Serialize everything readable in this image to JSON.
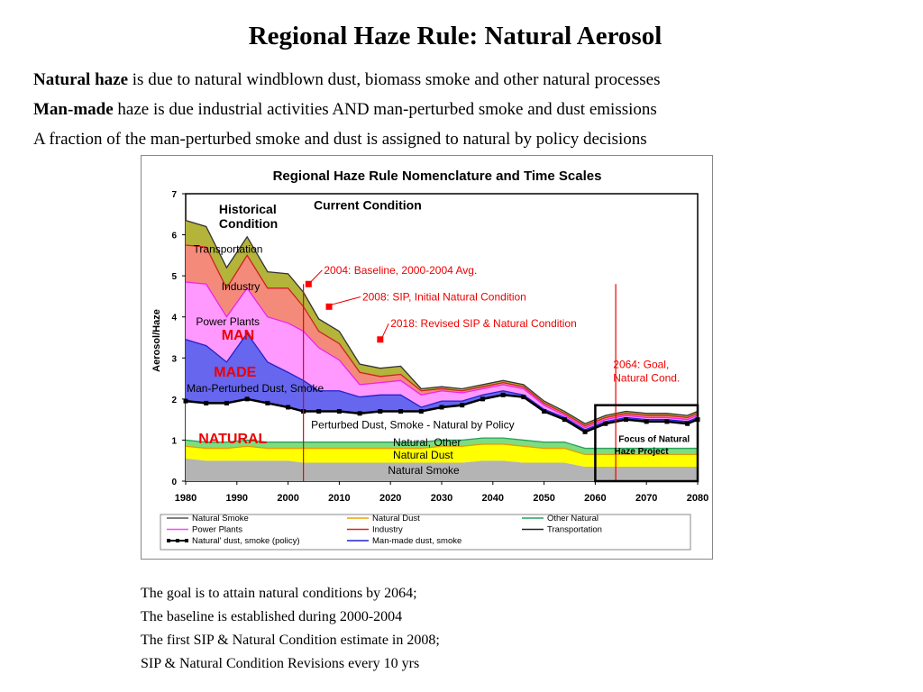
{
  "slide": {
    "title": "Regional Haze Rule: Natural Aerosol",
    "intro": [
      {
        "bold": "Natural haze",
        "rest": " is due to natural windblown dust, biomass smoke and other natural processes"
      },
      {
        "bold": "Man-made",
        "rest": " haze is due industrial activities  AND man-perturbed smoke and dust emissions"
      },
      {
        "bold": "",
        "rest": "A fraction of the man-perturbed smoke and dust is assigned to natural by policy decisions"
      }
    ],
    "notes": [
      "The goal is to attain natural conditions by 2064;",
      "The baseline is established during 2000-2004",
      "The first SIP & Natural Condition estimate in 2008;",
      "SIP & Natural Condition Revisions every 10 yrs"
    ]
  },
  "chart_data": {
    "type": "area",
    "title": "Regional Haze Rule Nomenclature and Time Scales",
    "ylabel": "Aerosol/Haze",
    "xlabel": "",
    "xlim": [
      1980,
      2080
    ],
    "ylim": [
      0,
      7
    ],
    "xticks": [
      1980,
      1990,
      2000,
      2010,
      2020,
      2030,
      2040,
      2050,
      2060,
      2070,
      2080
    ],
    "yticks": [
      0,
      1,
      2,
      3,
      4,
      5,
      6,
      7
    ],
    "x": [
      1980,
      1984,
      1988,
      1992,
      1996,
      2000,
      2003,
      2006,
      2010,
      2014,
      2018,
      2022,
      2026,
      2030,
      2034,
      2038,
      2042,
      2046,
      2050,
      2054,
      2058,
      2062,
      2066,
      2070,
      2074,
      2078,
      2080
    ],
    "series": [
      {
        "name": "Natural Smoke",
        "color": "#b4b4b4",
        "values": [
          0.55,
          0.5,
          0.5,
          0.5,
          0.5,
          0.5,
          0.45,
          0.45,
          0.45,
          0.45,
          0.45,
          0.45,
          0.45,
          0.45,
          0.45,
          0.5,
          0.5,
          0.45,
          0.45,
          0.45,
          0.35,
          0.35,
          0.35,
          0.35,
          0.35,
          0.35,
          0.35
        ]
      },
      {
        "name": "Natural Dust",
        "color": "#ffff00",
        "values": [
          0.3,
          0.3,
          0.3,
          0.35,
          0.3,
          0.3,
          0.35,
          0.35,
          0.35,
          0.35,
          0.35,
          0.35,
          0.35,
          0.4,
          0.4,
          0.4,
          0.4,
          0.4,
          0.35,
          0.35,
          0.3,
          0.3,
          0.3,
          0.3,
          0.3,
          0.3,
          0.3
        ]
      },
      {
        "name": "Other Natural",
        "color": "#7fdc7f",
        "values": [
          0.15,
          0.15,
          0.15,
          0.15,
          0.15,
          0.15,
          0.15,
          0.15,
          0.15,
          0.15,
          0.15,
          0.15,
          0.15,
          0.15,
          0.15,
          0.15,
          0.15,
          0.15,
          0.15,
          0.15,
          0.15,
          0.15,
          0.15,
          0.15,
          0.15,
          0.15,
          0.15
        ]
      },
      {
        "name": "Natural' dust, smoke (policy)",
        "color": "#ffffff",
        "values": [
          0.95,
          0.95,
          0.95,
          1.0,
          0.95,
          0.85,
          0.75,
          0.75,
          0.75,
          0.7,
          0.75,
          0.75,
          0.75,
          0.8,
          0.85,
          0.95,
          1.05,
          1.05,
          0.75,
          0.55,
          0.4,
          0.6,
          0.7,
          0.65,
          0.65,
          0.6,
          0.7
        ]
      },
      {
        "name": "Man-made dust, smoke",
        "color": "#6666ee",
        "values": [
          1.5,
          1.4,
          1.0,
          1.6,
          1.0,
          0.85,
          0.75,
          0.5,
          0.5,
          0.4,
          0.4,
          0.4,
          0.1,
          0.15,
          0.1,
          0.1,
          0.1,
          0.05,
          0.05,
          0.05,
          0.05,
          0.05,
          0.05,
          0.05,
          0.05,
          0.05,
          0.05
        ]
      },
      {
        "name": "Power Plants",
        "color": "#ff99ff",
        "values": [
          1.4,
          1.5,
          1.1,
          1.1,
          1.1,
          1.2,
          1.2,
          1.05,
          0.75,
          0.3,
          0.3,
          0.35,
          0.3,
          0.25,
          0.2,
          0.15,
          0.15,
          0.15,
          0.1,
          0.05,
          0.05,
          0.05,
          0.05,
          0.05,
          0.05,
          0.05,
          0.05
        ]
      },
      {
        "name": "Industry",
        "color": "#f48a7a",
        "values": [
          0.9,
          0.9,
          0.7,
          0.8,
          0.7,
          0.85,
          0.6,
          0.4,
          0.4,
          0.3,
          0.15,
          0.15,
          0.1,
          0.05,
          0.05,
          0.05,
          0.05,
          0.05,
          0.05,
          0.05,
          0.05,
          0.05,
          0.05,
          0.05,
          0.05,
          0.05,
          0.05
        ]
      },
      {
        "name": "Transportation",
        "color": "#b4b43a",
        "values": [
          0.6,
          0.5,
          0.5,
          0.45,
          0.4,
          0.35,
          0.35,
          0.3,
          0.3,
          0.2,
          0.2,
          0.2,
          0.05,
          0.05,
          0.05,
          0.05,
          0.05,
          0.05,
          0.05,
          0.05,
          0.05,
          0.05,
          0.05,
          0.05,
          0.05,
          0.05,
          0.05
        ]
      }
    ],
    "policy_line": {
      "x": [
        1980,
        1984,
        1988,
        1992,
        1996,
        2000,
        2003,
        2006,
        2010,
        2014,
        2018,
        2022,
        2026,
        2030,
        2034,
        2038,
        2042,
        2046,
        2050,
        2054,
        2058,
        2062,
        2066,
        2070,
        2074,
        2078,
        2080
      ],
      "y": [
        1.95,
        1.9,
        1.9,
        2.0,
        1.9,
        1.8,
        1.7,
        1.7,
        1.7,
        1.65,
        1.7,
        1.7,
        1.7,
        1.8,
        1.85,
        2.0,
        2.1,
        2.05,
        1.7,
        1.5,
        1.2,
        1.4,
        1.5,
        1.45,
        1.45,
        1.4,
        1.5
      ],
      "color": "#000000"
    },
    "milestones": [
      {
        "year": 2004,
        "y": 4.8,
        "label": "2004: Baseline, 2000-2004 Avg."
      },
      {
        "year": 2008,
        "y": 4.25,
        "label": "2008: SIP, Initial Natural Condition"
      },
      {
        "year": 2018,
        "y": 3.45,
        "label": "2018: Revised SIP & Natural Condition"
      }
    ],
    "vlines": [
      2003,
      2064
    ],
    "focus_box": {
      "x": [
        2060,
        2080
      ],
      "y": [
        0,
        1.85
      ],
      "label": [
        "Focus of Natural",
        "Haze Project"
      ]
    },
    "goal_label": [
      "2064: Goal,",
      "Natural Cond."
    ],
    "annotations": {
      "historical": [
        "Historical",
        "Condition"
      ],
      "current": "Current Condition",
      "man": "MAN",
      "made": "MADE",
      "natural": "NATURAL",
      "transportation": "Transportation",
      "industry": "Industry",
      "power_plants": "Power Plants",
      "man_perturbed": "Man-Perturbed Dust, Smoke",
      "perturbed": "Perturbed Dust, Smoke - Natural by Policy",
      "natural_other": "Natural, Other",
      "natural_dust": "Natural Dust",
      "natural_smoke": "Natural Smoke"
    },
    "legend": [
      {
        "label": "Natural Smoke",
        "color": "#555555",
        "marker": false
      },
      {
        "label": "Natural Dust",
        "color": "#f0a000",
        "marker": false
      },
      {
        "label": "Other Natural",
        "color": "#2aa060",
        "marker": false
      },
      {
        "label": "Power Plants",
        "color": "#ff44ff",
        "marker": false
      },
      {
        "label": "Industry",
        "color": "#dd2222",
        "marker": false
      },
      {
        "label": "Transportation",
        "color": "#222222",
        "marker": false
      },
      {
        "label": "Natural' dust, smoke (policy)",
        "color": "#000000",
        "marker": true
      },
      {
        "label": "Man-made dust, smoke",
        "color": "#2222cc",
        "marker": false
      }
    ]
  }
}
